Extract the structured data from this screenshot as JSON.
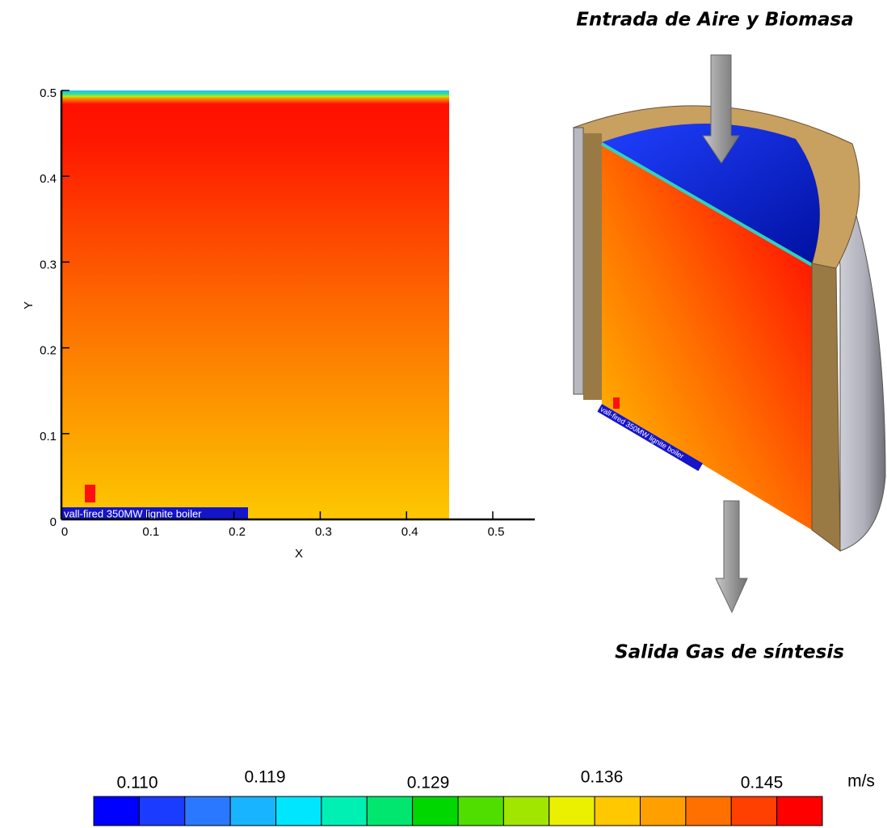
{
  "chart_data": {
    "type": "contour",
    "x_label": "X",
    "y_label": "Y",
    "xlim": [
      0,
      0.55
    ],
    "ylim": [
      0,
      0.5
    ],
    "xticks": [
      0,
      0.1,
      0.2,
      0.3,
      0.4,
      0.5
    ],
    "yticks": [
      0,
      0.1,
      0.2,
      0.3,
      0.4,
      0.5
    ],
    "plot_caption": "vall-fired 350MW lignite boiler",
    "colorbar": {
      "unit": "m/s",
      "colors": [
        "#0000ff",
        "#1a3cff",
        "#2a78ff",
        "#18b4ff",
        "#00e6ff",
        "#00f0b4",
        "#00e66e",
        "#00d600",
        "#50de00",
        "#a0e600",
        "#eaf000",
        "#ffc800",
        "#ffa000",
        "#ff7000",
        "#ff4000",
        "#ff0000"
      ],
      "ticks": [
        {
          "value": 0.11,
          "label": "0.110"
        },
        {
          "value": 0.119,
          "label": "0.119"
        },
        {
          "value": 0.129,
          "label": "0.129"
        },
        {
          "value": 0.136,
          "label": "0.136"
        },
        {
          "value": 0.145,
          "label": "0.145"
        }
      ]
    }
  },
  "diagram": {
    "inlet_label": "Entrada de Aire y Biomasa",
    "outlet_label": "Salida Gas de síntesis"
  }
}
